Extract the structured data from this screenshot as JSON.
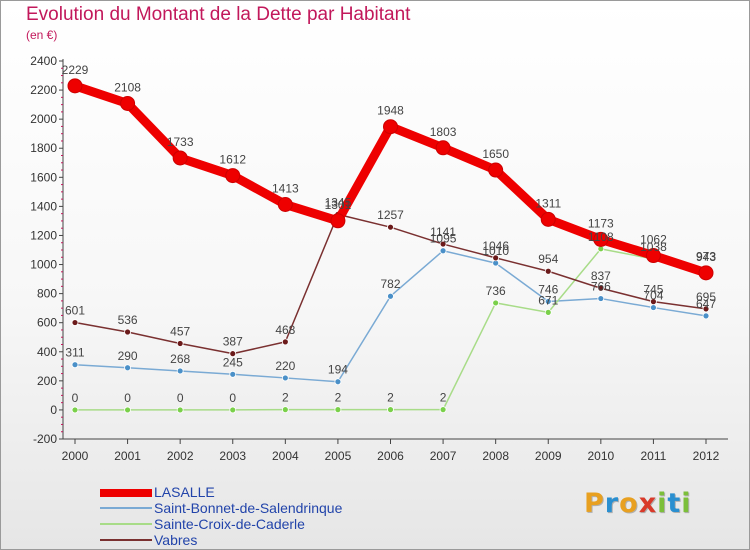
{
  "title": "Evolution du Montant de la Dette par Habitant",
  "subtitle": "(en €)",
  "brand": {
    "letters": [
      "P",
      "r",
      "o",
      "x",
      "i",
      "t",
      "i"
    ],
    "colors": [
      "#e8a020",
      "#2a8fd0",
      "#e8a020",
      "#d93a2a",
      "#7cbf3a",
      "#2a8fd0",
      "#7cbf3a"
    ]
  },
  "chart_data": {
    "type": "line",
    "x": [
      2000,
      2001,
      2002,
      2003,
      2004,
      2005,
      2006,
      2007,
      2008,
      2009,
      2010,
      2011,
      2012
    ],
    "ylim": [
      -200,
      2400
    ],
    "yticks": [
      -200,
      0,
      200,
      400,
      600,
      800,
      1000,
      1200,
      1400,
      1600,
      1800,
      2000,
      2200,
      2400
    ],
    "grid": false,
    "legend_position": "bottom-left",
    "series": [
      {
        "name": "Saint-Bonnet-de-Salendrinque",
        "color": "#4a90c8",
        "line_color": "#7aaad4",
        "values": [
          311,
          290,
          268,
          245,
          220,
          194,
          782,
          1095,
          1010,
          746,
          766,
          704,
          647
        ]
      },
      {
        "name": "Sainte-Croix-de-Caderle",
        "color": "#7ad04a",
        "line_color": "#a8dc88",
        "values": [
          0,
          0,
          0,
          0,
          2,
          2,
          2,
          2,
          736,
          671,
          1108,
          1038,
          973
        ]
      },
      {
        "name": "Vabres",
        "color": "#6b1a1a",
        "line_color": "#7a3030",
        "values": [
          601,
          536,
          457,
          387,
          468,
          1345,
          1257,
          1141,
          1046,
          954,
          837,
          745,
          695
        ]
      },
      {
        "name": "LASALLE",
        "color": "#ee0000",
        "line_color": "#ee0000",
        "values": [
          2229,
          2108,
          1733,
          1612,
          1413,
          1301,
          1948,
          1803,
          1650,
          1311,
          1173,
          1062,
          943
        ]
      }
    ]
  },
  "legend": [
    "LASALLE",
    "Saint-Bonnet-de-Salendrinque",
    "Sainte-Croix-de-Caderle",
    "Vabres"
  ]
}
